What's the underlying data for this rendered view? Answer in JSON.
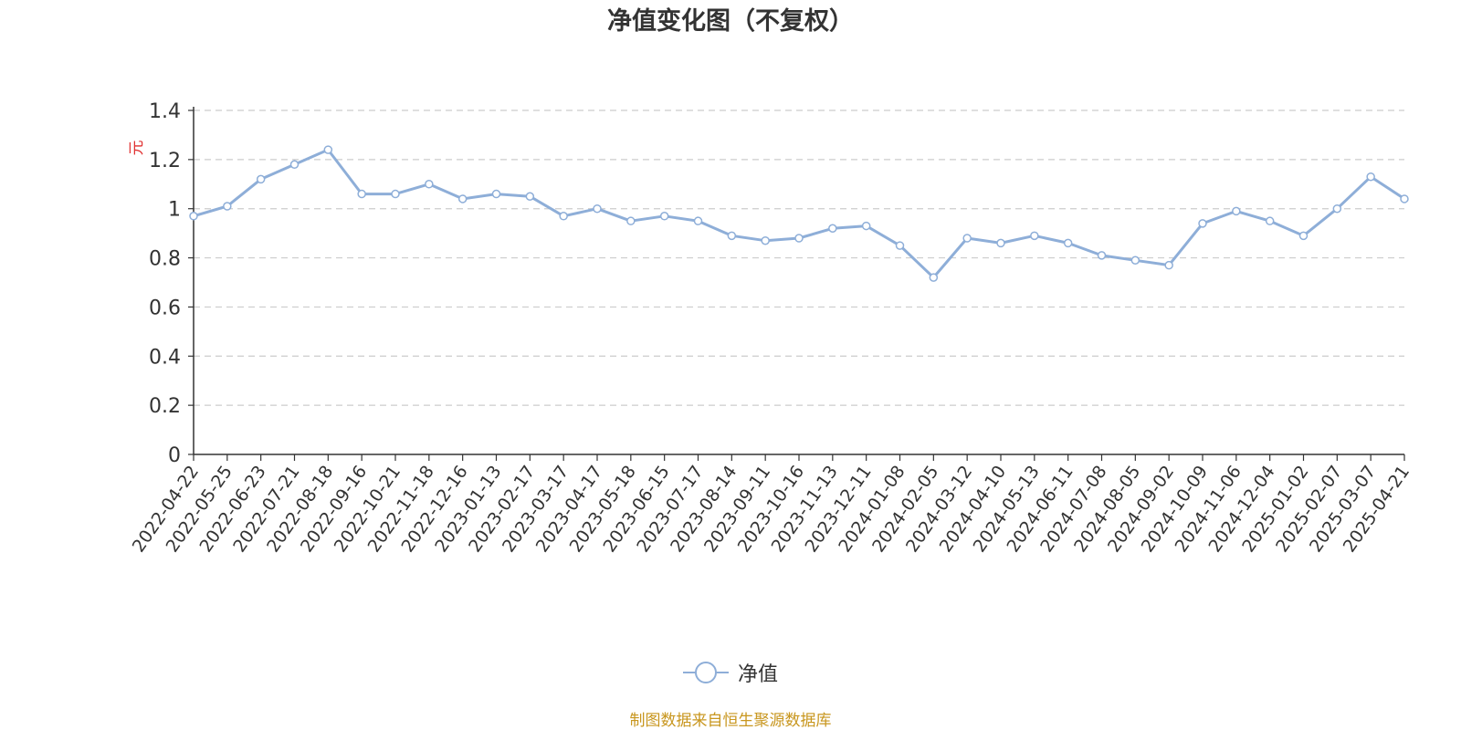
{
  "chart_data": {
    "type": "line",
    "title": "净值变化图（不复权）",
    "ylabel": "元",
    "ylim": [
      0,
      1.4
    ],
    "yticks": [
      "0",
      "0.2",
      "0.4",
      "0.6",
      "0.8",
      "1",
      "1.2",
      "1.4"
    ],
    "grid": true,
    "legend_position": "bottom-center",
    "xtick_labels": [
      "2022-04-22",
      "2022-05-25",
      "2022-06-23",
      "2022-07-21",
      "2022-08-18",
      "2022-09-16",
      "2022-10-21",
      "2022-11-18",
      "2022-12-16",
      "2023-01-13",
      "2023-02-17",
      "2023-03-17",
      "2023-04-17",
      "2023-05-18",
      "2023-06-15",
      "2023-07-17",
      "2023-08-14",
      "2023-09-11",
      "2023-10-16",
      "2023-11-13",
      "2023-12-11",
      "2024-01-08",
      "2024-02-05",
      "2024-03-12",
      "2024-04-10",
      "2024-05-13",
      "2024-06-11",
      "2024-07-08",
      "2024-08-05",
      "2024-09-02",
      "2024-10-09",
      "2024-11-06",
      "2024-12-04",
      "2025-01-02",
      "2025-02-07",
      "2025-03-07",
      "2025-04-21"
    ],
    "series": [
      {
        "name": "净值",
        "color": "#8eaed8",
        "x": [
          "2022-04-22",
          "2022-05-25",
          "2022-06-23",
          "2022-07-21",
          "2022-08-18",
          "2022-09-16",
          "2022-10-21",
          "2022-11-18",
          "2022-12-16",
          "2023-01-13",
          "2023-02-17",
          "2023-03-17",
          "2023-04-17",
          "2023-05-18",
          "2023-06-15",
          "2023-07-17",
          "2023-08-14",
          "2023-09-11",
          "2023-10-16",
          "2023-11-13",
          "2023-12-11",
          "2024-01-08",
          "2024-02-05",
          "2024-03-12",
          "2024-04-10",
          "2024-05-13",
          "2024-06-11",
          "2024-07-08",
          "2024-08-05",
          "2024-09-02",
          "2024-10-09",
          "2024-11-06",
          "2024-12-04",
          "2025-01-02",
          "2025-02-07",
          "2025-03-07",
          "2025-04-21"
        ],
        "values": [
          0.97,
          1.01,
          1.12,
          1.18,
          1.24,
          1.06,
          1.06,
          1.1,
          1.04,
          1.06,
          1.05,
          0.97,
          1.0,
          0.95,
          0.97,
          0.95,
          0.89,
          0.87,
          0.88,
          0.92,
          0.93,
          0.85,
          0.72,
          0.88,
          0.86,
          0.89,
          0.86,
          0.81,
          0.79,
          0.77,
          0.94,
          0.99,
          0.95,
          0.89,
          1.0,
          1.13,
          1.04
        ]
      }
    ]
  },
  "source_note": "制图数据来自恒生聚源数据库"
}
